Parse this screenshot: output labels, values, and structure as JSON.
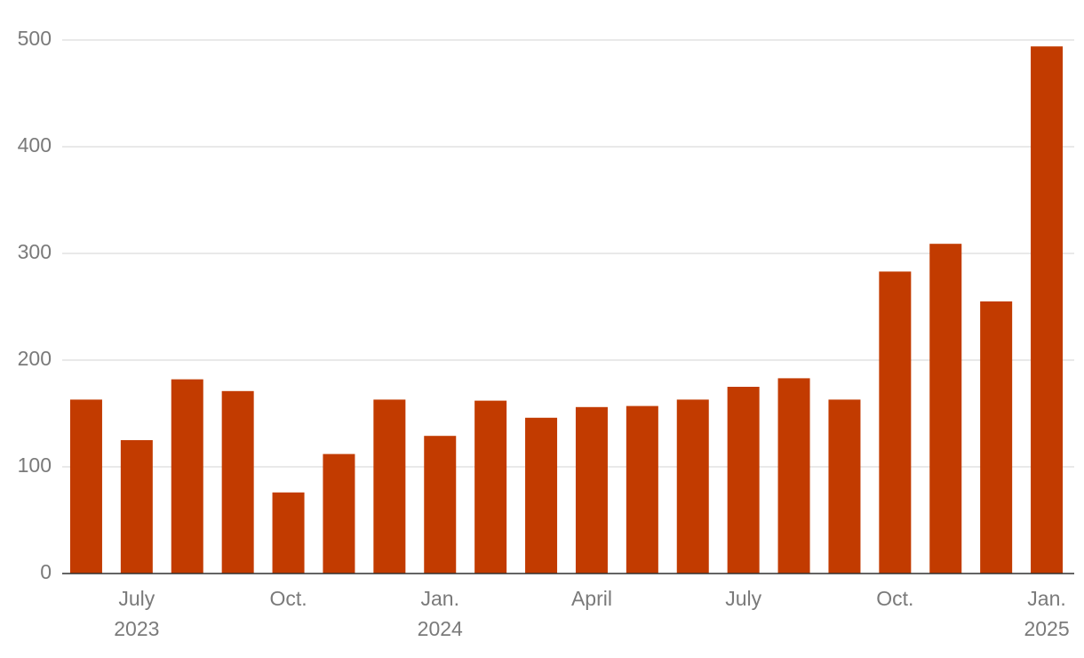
{
  "chart_data": {
    "type": "bar",
    "categories": [
      null,
      "July",
      null,
      null,
      "Oct.",
      null,
      null,
      "Jan.",
      null,
      null,
      "April",
      null,
      null,
      "July",
      null,
      null,
      "Oct.",
      null,
      null,
      "Jan."
    ],
    "years": [
      null,
      "2023",
      null,
      null,
      null,
      null,
      null,
      "2024",
      null,
      null,
      null,
      null,
      null,
      null,
      null,
      null,
      null,
      null,
      null,
      "2025"
    ],
    "values": [
      163,
      125,
      182,
      171,
      76,
      112,
      163,
      129,
      162,
      146,
      156,
      157,
      163,
      175,
      183,
      163,
      283,
      309,
      255,
      494
    ],
    "color": "#c23b00",
    "ylim": [
      0,
      500
    ],
    "yticks": [
      0,
      100,
      200,
      300,
      400,
      500
    ],
    "grid": true
  }
}
